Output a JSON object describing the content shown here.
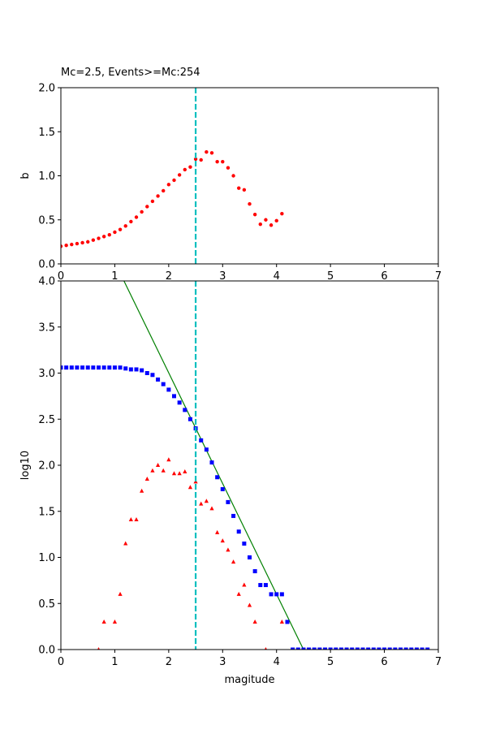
{
  "chart_data": [
    {
      "type": "scatter",
      "title": "Mc=2.5, Events>=Mc:254",
      "y_label": "b",
      "xlim": [
        0,
        7
      ],
      "xticks": [
        0,
        1,
        2,
        3,
        4,
        5,
        6,
        7
      ],
      "ylim": [
        0,
        2
      ],
      "yticks": [
        {
          "value": 0,
          "label": "0.0"
        },
        0.5,
        {
          "value": 1,
          "label": "1.0"
        },
        1.5,
        {
          "value": 2,
          "label": "2.0"
        }
      ],
      "vline": {
        "x": 2.5,
        "color": "#00bfbf",
        "dashed": true
      },
      "series": [
        {
          "marker": "circle",
          "color": "#ff0000",
          "x": [
            0,
            0.1,
            0.2,
            0.3,
            0.4,
            0.5,
            0.6,
            0.7,
            0.8,
            0.9,
            1,
            1.1,
            1.2,
            1.3,
            1.4,
            1.5,
            1.6,
            1.7,
            1.8,
            1.9,
            2,
            2.1,
            2.2,
            2.3,
            2.4,
            2.5,
            2.6,
            2.7,
            2.8,
            2.9,
            3,
            3.1,
            3.2,
            3.3,
            3.4,
            3.5,
            3.6,
            3.7,
            3.8,
            3.9,
            4,
            4.1
          ],
          "values": [
            0.2,
            0.21,
            0.22,
            0.23,
            0.24,
            0.25,
            0.27,
            0.29,
            0.31,
            0.33,
            0.36,
            0.39,
            0.43,
            0.48,
            0.53,
            0.59,
            0.65,
            0.71,
            0.77,
            0.83,
            0.9,
            0.95,
            1.01,
            1.07,
            1.1,
            1.19,
            1.18,
            1.27,
            1.26,
            1.16,
            1.16,
            1.09,
            1.0,
            0.86,
            0.84,
            0.68,
            0.56,
            0.45,
            0.5,
            0.44,
            0.49,
            0.57
          ]
        }
      ]
    },
    {
      "type": "scatter",
      "x_label": "magitude",
      "y_label": "log10",
      "xlim": [
        0,
        7
      ],
      "xticks": [
        0,
        1,
        2,
        3,
        4,
        5,
        6,
        7
      ],
      "ylim": [
        0,
        4
      ],
      "yticks": [
        {
          "value": 0,
          "label": "0.0"
        },
        0.5,
        {
          "value": 1,
          "label": "1.0"
        },
        1.5,
        {
          "value": 2,
          "label": "2.0"
        },
        2.5,
        {
          "value": 3,
          "label": "3.0"
        },
        3.5,
        {
          "value": 4,
          "label": "4.0"
        }
      ],
      "vline": {
        "x": 2.5,
        "color": "#00bfbf",
        "dashed": true
      },
      "series": [
        {
          "marker": "line",
          "color": "#008000",
          "x": [
            1.17,
            4.5
          ],
          "values": [
            4,
            0
          ]
        },
        {
          "marker": "square",
          "color": "#0000ff",
          "x": [
            0,
            0.1,
            0.2,
            0.3,
            0.4,
            0.5,
            0.6,
            0.7,
            0.8,
            0.9,
            1,
            1.1,
            1.2,
            1.3,
            1.4,
            1.5,
            1.6,
            1.7,
            1.8,
            1.9,
            2,
            2.1,
            2.2,
            2.3,
            2.4,
            2.5,
            2.6,
            2.7,
            2.8,
            2.9,
            3,
            3.1,
            3.2,
            3.3,
            3.4,
            3.5,
            3.6,
            3.7,
            3.8,
            3.9,
            4,
            4.1,
            4.2,
            4.3,
            4.4,
            4.5,
            4.6,
            4.7,
            4.8,
            4.9,
            5,
            5.1,
            5.2,
            5.3,
            5.4,
            5.5,
            5.6,
            5.7,
            5.8,
            5.9,
            6,
            6.1,
            6.2,
            6.3,
            6.4,
            6.5,
            6.6,
            6.7,
            6.8
          ],
          "values": [
            3.06,
            3.06,
            3.06,
            3.06,
            3.06,
            3.06,
            3.06,
            3.06,
            3.06,
            3.06,
            3.06,
            3.06,
            3.05,
            3.04,
            3.04,
            3.03,
            3.0,
            2.98,
            2.93,
            2.88,
            2.82,
            2.75,
            2.68,
            2.6,
            2.5,
            2.4,
            2.27,
            2.17,
            2.03,
            1.87,
            1.74,
            1.6,
            1.45,
            1.28,
            1.15,
            1.0,
            0.85,
            0.7,
            0.7,
            0.6,
            0.6,
            0.6,
            0.3,
            0,
            0,
            0,
            0,
            0,
            0,
            0,
            0,
            0,
            0,
            0,
            0,
            0,
            0,
            0,
            0,
            0,
            0,
            0,
            0,
            0,
            0,
            0,
            0,
            0,
            0
          ]
        },
        {
          "marker": "triangle",
          "color": "#ff0000",
          "x": [
            0.7,
            0.8,
            0.9,
            1,
            1.1,
            1.2,
            1.3,
            1.4,
            1.5,
            1.6,
            1.7,
            1.8,
            1.9,
            2,
            2.1,
            2.2,
            2.3,
            2.4,
            2.5,
            2.6,
            2.7,
            2.8,
            2.9,
            3,
            3.1,
            3.2,
            3.3,
            3.4,
            3.5,
            3.6,
            3.7,
            3.8,
            3.9,
            4,
            4.1
          ],
          "values": [
            0,
            0.3,
            null,
            0.3,
            0.6,
            1.15,
            1.41,
            1.41,
            1.72,
            1.85,
            1.94,
            2.0,
            1.94,
            2.06,
            1.91,
            1.91,
            1.93,
            1.76,
            1.82,
            1.58,
            1.61,
            1.53,
            1.27,
            1.18,
            1.08,
            0.95,
            0.6,
            0.7,
            0.48,
            0.3,
            null,
            0,
            null,
            null,
            0.3
          ]
        }
      ]
    }
  ]
}
